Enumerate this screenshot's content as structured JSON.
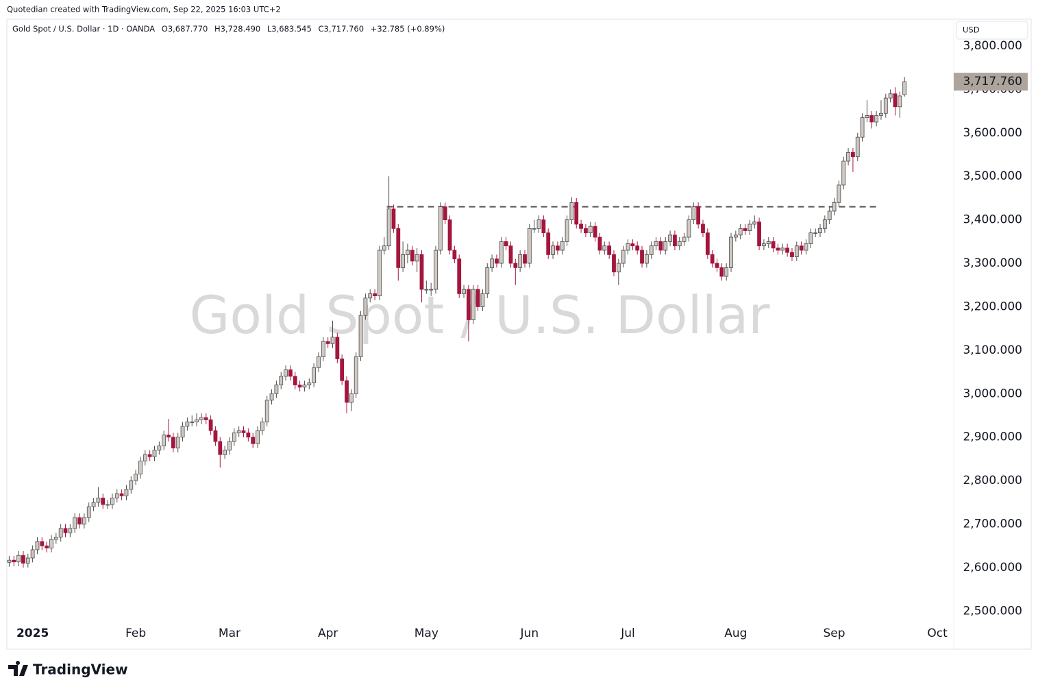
{
  "header": {
    "credit": "Quotedian created with TradingView.com, Sep 22, 2025 16:03 UTC+2",
    "symbol": "Gold Spot / U.S. Dollar · 1D · OANDA",
    "open": "O3,687.770",
    "high": "H3,728.490",
    "low": "L3,683.545",
    "close": "C3,717.760",
    "change": "+32.785 (+0.89%)",
    "currency": "USD",
    "watermark": "Gold Spot / U.S. Dollar",
    "logo": "TradingView"
  },
  "chart_data": {
    "type": "candlestick",
    "grid": false,
    "up_color": "#cfc8c3",
    "down_color": "#a3163d",
    "outline_color": "#4a4a4a",
    "line_color": "#555555",
    "ylim": [
      2478.5,
      3861.5
    ],
    "yticks": [
      {
        "value": 2500,
        "label": "2,500.000"
      },
      {
        "value": 2600,
        "label": "2,600.000"
      },
      {
        "value": 2700,
        "label": "2,700.000"
      },
      {
        "value": 2800,
        "label": "2,800.000"
      },
      {
        "value": 2900,
        "label": "2,900.000"
      },
      {
        "value": 3000,
        "label": "3,000.000"
      },
      {
        "value": 3100,
        "label": "3,100.000"
      },
      {
        "value": 3200,
        "label": "3,200.000"
      },
      {
        "value": 3300,
        "label": "3,300.000"
      },
      {
        "value": 3400,
        "label": "3,400.000"
      },
      {
        "value": 3500,
        "label": "3,500.000"
      },
      {
        "value": 3600,
        "label": "3,600.000"
      },
      {
        "value": 3700,
        "label": "3,700.000"
      },
      {
        "value": 3800,
        "label": "3,800.000"
      }
    ],
    "last_price": {
      "value": 3717.76,
      "label": "3,717.760"
    },
    "horizontal_line": 3430,
    "categories": [
      null,
      null,
      null,
      null,
      null,
      "2025",
      null,
      null,
      null,
      null,
      null,
      null,
      null,
      null,
      null,
      null,
      null,
      null,
      null,
      null,
      null,
      null,
      null,
      null,
      null,
      null,
      null,
      "Feb",
      null,
      null,
      null,
      null,
      null,
      null,
      null,
      null,
      null,
      null,
      null,
      null,
      null,
      null,
      null,
      null,
      null,
      null,
      null,
      "Mar",
      null,
      null,
      null,
      null,
      null,
      null,
      null,
      null,
      null,
      null,
      null,
      null,
      null,
      null,
      null,
      null,
      null,
      null,
      null,
      null,
      "Apr",
      null,
      null,
      null,
      null,
      null,
      null,
      null,
      null,
      null,
      null,
      null,
      null,
      null,
      null,
      null,
      null,
      null,
      null,
      null,
      null,
      "May",
      null,
      null,
      null,
      null,
      null,
      null,
      null,
      null,
      null,
      null,
      null,
      null,
      null,
      null,
      null,
      null,
      null,
      null,
      null,
      null,
      null,
      "Jun",
      null,
      null,
      null,
      null,
      null,
      null,
      null,
      null,
      null,
      null,
      null,
      null,
      null,
      null,
      null,
      null,
      null,
      null,
      null,
      null,
      "Jul",
      null,
      null,
      null,
      null,
      null,
      null,
      null,
      null,
      null,
      null,
      null,
      null,
      null,
      null,
      null,
      null,
      null,
      null,
      null,
      null,
      null,
      null,
      "Aug",
      null,
      null,
      null,
      null,
      null,
      null,
      null,
      null,
      null,
      null,
      null,
      null,
      null,
      null,
      null,
      null,
      null,
      null,
      null,
      null,
      "Sep",
      null,
      null,
      null,
      null,
      null,
      null,
      null,
      null,
      null,
      null,
      null,
      null,
      null,
      null,
      null,
      null,
      null,
      null,
      null,
      null,
      null,
      "Oct",
      null,
      null,
      null
    ],
    "open": [
      2612,
      2617,
      2613,
      2628,
      2610,
      2622,
      2641,
      2660,
      2650,
      2645,
      2665,
      2670,
      2690,
      2680,
      2690,
      2715,
      2700,
      2715,
      2740,
      2750,
      2760,
      2745,
      2745,
      2760,
      2770,
      2765,
      2780,
      2800,
      2815,
      2845,
      2860,
      2855,
      2870,
      2880,
      2905,
      2900,
      2875,
      2900,
      2925,
      2935,
      2935,
      2940,
      2945,
      2940,
      2915,
      2890,
      2860,
      2870,
      2890,
      2910,
      2915,
      2910,
      2900,
      2885,
      2915,
      2935,
      2985,
      3000,
      3020,
      3040,
      3055,
      3040,
      3020,
      3015,
      3020,
      3025,
      3060,
      3085,
      3120,
      3115,
      3130,
      3080,
      3030,
      2980,
      3000,
      3085,
      3180,
      3220,
      3230,
      3225,
      3330,
      3340,
      3425,
      3380,
      3290,
      3320,
      3330,
      3305,
      3320,
      3240,
      3240,
      3240,
      3330,
      3430,
      3400,
      3330,
      3310,
      3230,
      3240,
      3170,
      3240,
      3200,
      3230,
      3290,
      3310,
      3300,
      3350,
      3340,
      3300,
      3290,
      3320,
      3300,
      3380,
      3380,
      3400,
      3370,
      3320,
      3340,
      3330,
      3350,
      3400,
      3440,
      3390,
      3380,
      3370,
      3385,
      3360,
      3330,
      3340,
      3320,
      3280,
      3300,
      3330,
      3345,
      3340,
      3330,
      3300,
      3320,
      3340,
      3350,
      3330,
      3350,
      3365,
      3340,
      3350,
      3360,
      3400,
      3430,
      3390,
      3370,
      3320,
      3300,
      3290,
      3270,
      3290,
      3360,
      3365,
      3380,
      3375,
      3390,
      3395,
      3340,
      3345,
      3350,
      3335,
      3330,
      3335,
      3325,
      3315,
      3340,
      3330,
      3345,
      3370,
      3370,
      3380,
      3400,
      3420,
      3440,
      3480,
      3535,
      3555,
      3545,
      3590,
      3635,
      3640,
      3625,
      3640,
      3645,
      3680,
      3690,
      3660,
      3687.77,
      null,
      null,
      null,
      null,
      null,
      null,
      null,
      null,
      null,
      null
    ],
    "high": [
      2627,
      2627,
      2638,
      2638,
      2632,
      2651,
      2670,
      2670,
      2660,
      2675,
      2680,
      2700,
      2700,
      2700,
      2725,
      2725,
      2725,
      2750,
      2760,
      2785,
      2770,
      2755,
      2770,
      2780,
      2780,
      2790,
      2810,
      2825,
      2855,
      2870,
      2870,
      2880,
      2890,
      2915,
      2942,
      2910,
      2910,
      2935,
      2945,
      2950,
      2955,
      2955,
      2955,
      2950,
      2925,
      2900,
      2880,
      2900,
      2920,
      2925,
      2925,
      2920,
      2910,
      2925,
      2945,
      2995,
      3010,
      3030,
      3050,
      3065,
      3065,
      3050,
      3030,
      3030,
      3035,
      3070,
      3095,
      3130,
      3130,
      3168,
      3140,
      3090,
      3040,
      3010,
      3095,
      3190,
      3230,
      3240,
      3240,
      3340,
      3360,
      3500,
      3435,
      3390,
      3350,
      3345,
      3340,
      3335,
      3330,
      3260,
      3255,
      3340,
      3440,
      3440,
      3410,
      3340,
      3320,
      3250,
      3250,
      3250,
      3250,
      3240,
      3300,
      3320,
      3320,
      3360,
      3360,
      3350,
      3310,
      3330,
      3330,
      3390,
      3400,
      3410,
      3410,
      3380,
      3350,
      3350,
      3360,
      3410,
      3452,
      3450,
      3400,
      3390,
      3395,
      3395,
      3370,
      3350,
      3350,
      3330,
      3310,
      3340,
      3355,
      3355,
      3350,
      3340,
      3330,
      3350,
      3360,
      3360,
      3360,
      3375,
      3375,
      3360,
      3370,
      3410,
      3440,
      3440,
      3400,
      3380,
      3330,
      3310,
      3300,
      3300,
      3370,
      3375,
      3390,
      3390,
      3400,
      3410,
      3405,
      3355,
      3360,
      3360,
      3345,
      3345,
      3345,
      3335,
      3350,
      3350,
      3355,
      3380,
      3380,
      3390,
      3410,
      3430,
      3450,
      3490,
      3545,
      3565,
      3565,
      3600,
      3645,
      3675,
      3650,
      3650,
      3675,
      3690,
      3700,
      3705,
      3695,
      3728.49,
      null,
      null,
      null,
      null,
      null,
      null,
      null,
      null,
      null,
      null
    ],
    "low": [
      2602,
      2603,
      2603,
      2600,
      2600,
      2612,
      2631,
      2640,
      2635,
      2635,
      2655,
      2660,
      2670,
      2670,
      2680,
      2690,
      2690,
      2705,
      2730,
      2740,
      2735,
      2735,
      2735,
      2750,
      2755,
      2755,
      2770,
      2790,
      2805,
      2835,
      2845,
      2845,
      2860,
      2870,
      2890,
      2865,
      2865,
      2890,
      2915,
      2925,
      2925,
      2930,
      2930,
      2905,
      2880,
      2830,
      2850,
      2860,
      2880,
      2900,
      2900,
      2890,
      2875,
      2875,
      2905,
      2925,
      2975,
      2990,
      3010,
      3030,
      3030,
      3010,
      3005,
      3005,
      3010,
      3015,
      3050,
      3075,
      3105,
      3105,
      3070,
      3020,
      2955,
      2960,
      2990,
      3075,
      3170,
      3210,
      3215,
      3215,
      3320,
      3330,
      3370,
      3260,
      3280,
      3300,
      3295,
      3280,
      3210,
      3230,
      3225,
      3230,
      3320,
      3390,
      3320,
      3300,
      3220,
      3220,
      3120,
      3160,
      3190,
      3190,
      3220,
      3280,
      3290,
      3290,
      3330,
      3290,
      3250,
      3280,
      3290,
      3290,
      3370,
      3370,
      3360,
      3310,
      3310,
      3320,
      3320,
      3340,
      3390,
      3380,
      3370,
      3360,
      3360,
      3350,
      3320,
      3320,
      3310,
      3270,
      3250,
      3290,
      3320,
      3330,
      3320,
      3290,
      3290,
      3310,
      3330,
      3320,
      3320,
      3340,
      3330,
      3330,
      3340,
      3350,
      3390,
      3380,
      3360,
      3310,
      3290,
      3280,
      3260,
      3260,
      3280,
      3350,
      3355,
      3365,
      3365,
      3380,
      3330,
      3330,
      3335,
      3325,
      3320,
      3320,
      3315,
      3305,
      3305,
      3320,
      3320,
      3335,
      3360,
      3360,
      3370,
      3390,
      3410,
      3430,
      3470,
      3525,
      3510,
      3535,
      3580,
      3625,
      3610,
      3615,
      3630,
      3635,
      3670,
      3640,
      3635,
      3683.545,
      null,
      null,
      null,
      null,
      null,
      null,
      null,
      null,
      null,
      null
    ],
    "close": [
      2617,
      2613,
      2628,
      2610,
      2622,
      2641,
      2660,
      2650,
      2645,
      2665,
      2670,
      2690,
      2680,
      2690,
      2715,
      2700,
      2715,
      2740,
      2750,
      2760,
      2745,
      2745,
      2760,
      2770,
      2765,
      2780,
      2800,
      2815,
      2845,
      2860,
      2855,
      2870,
      2880,
      2905,
      2900,
      2875,
      2900,
      2925,
      2935,
      2935,
      2940,
      2945,
      2940,
      2915,
      2890,
      2860,
      2870,
      2890,
      2910,
      2915,
      2910,
      2900,
      2885,
      2915,
      2935,
      2985,
      3000,
      3020,
      3040,
      3055,
      3040,
      3020,
      3015,
      3020,
      3025,
      3060,
      3085,
      3120,
      3115,
      3130,
      3080,
      3030,
      2980,
      3000,
      3085,
      3180,
      3220,
      3230,
      3225,
      3330,
      3340,
      3425,
      3380,
      3290,
      3320,
      3330,
      3305,
      3320,
      3240,
      3240,
      3240,
      3330,
      3430,
      3400,
      3330,
      3310,
      3230,
      3240,
      3170,
      3240,
      3200,
      3230,
      3290,
      3310,
      3300,
      3350,
      3340,
      3300,
      3290,
      3320,
      3300,
      3380,
      3380,
      3400,
      3370,
      3320,
      3340,
      3330,
      3350,
      3400,
      3440,
      3390,
      3380,
      3370,
      3385,
      3360,
      3330,
      3340,
      3320,
      3280,
      3300,
      3330,
      3345,
      3340,
      3330,
      3300,
      3320,
      3340,
      3350,
      3330,
      3350,
      3365,
      3340,
      3350,
      3360,
      3400,
      3430,
      3390,
      3370,
      3320,
      3300,
      3290,
      3270,
      3290,
      3360,
      3365,
      3380,
      3375,
      3390,
      3395,
      3340,
      3345,
      3350,
      3335,
      3330,
      3335,
      3325,
      3315,
      3340,
      3330,
      3345,
      3370,
      3370,
      3380,
      3400,
      3420,
      3440,
      3480,
      3535,
      3555,
      3545,
      3590,
      3635,
      3640,
      3625,
      3640,
      3645,
      3680,
      3690,
      3660,
      3684.975,
      3717.76,
      null,
      null,
      null,
      null,
      null,
      null,
      null,
      null,
      null,
      null
    ]
  }
}
